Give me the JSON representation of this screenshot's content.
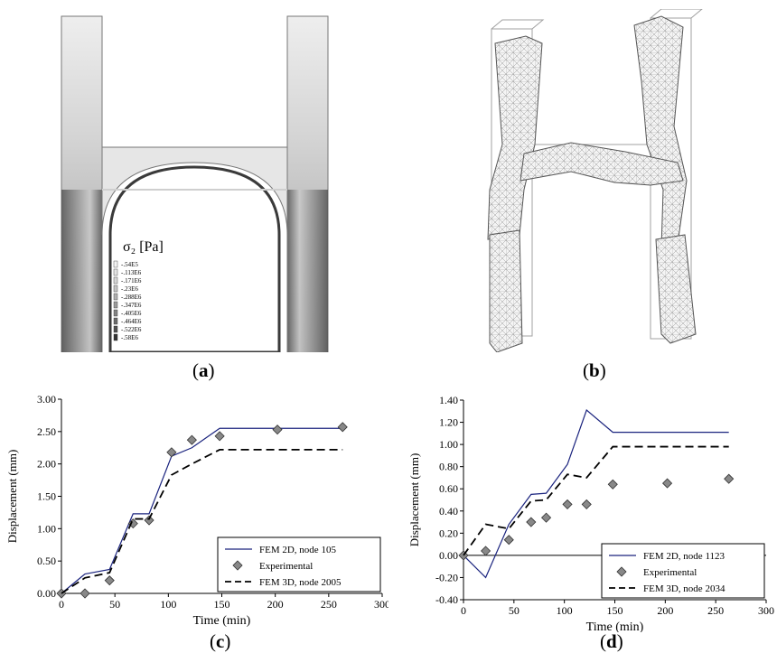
{
  "panels": {
    "a": {
      "caption_letter": "a",
      "sigma_label": "σ₂ [Pa]",
      "legend_values": [
        ".54E5",
        ".113E6",
        ".171E6",
        ".23E6",
        ".288E6",
        ".347E6",
        ".405E6",
        ".464E6",
        ".522E6",
        ".58E6"
      ],
      "legend_prefixes": [
        "-",
        "-",
        "-",
        "-",
        "-",
        "-",
        "-",
        "-",
        "-",
        "-"
      ],
      "legend_colors": [
        "#f2f2f2",
        "#e4e4e4",
        "#d6d6d6",
        "#c4c4c4",
        "#b0b0b0",
        "#9a9a9a",
        "#838383",
        "#6a6a6a",
        "#4f4f4f",
        "#333333"
      ]
    },
    "b": {
      "caption_letter": "b"
    },
    "c": {
      "caption_letter": "c"
    },
    "d": {
      "caption_letter": "d"
    }
  },
  "chart_data": [
    {
      "panel": "c",
      "type": "line",
      "xlabel": "Time (min)",
      "ylabel": "Displacement (mm)",
      "xlim": [
        0,
        300
      ],
      "ylim": [
        0,
        3
      ],
      "xticks": [
        0,
        50,
        100,
        150,
        200,
        250,
        300
      ],
      "yticks": [
        0.0,
        0.5,
        1.0,
        1.5,
        2.0,
        2.5,
        3.0
      ],
      "ytick_labels": [
        "0.00",
        "0.50",
        "1.00",
        "1.50",
        "2.00",
        "2.50",
        "3.00"
      ],
      "legend_position": "bottom-right",
      "series": [
        {
          "name": "FEM 2D, node 105",
          "style": "solid",
          "color": "#1a237e",
          "x": [
            0,
            22,
            45,
            67,
            82,
            103,
            122,
            148,
            263
          ],
          "y": [
            0,
            0.3,
            0.37,
            1.23,
            1.23,
            2.12,
            2.25,
            2.55,
            2.55
          ]
        },
        {
          "name": "Experimental",
          "style": "marker",
          "color": "#888888",
          "x": [
            0,
            22,
            45,
            67,
            82,
            103,
            122,
            148,
            202,
            263
          ],
          "y": [
            0,
            0,
            0.2,
            1.08,
            1.13,
            2.18,
            2.37,
            2.43,
            2.53,
            2.57
          ]
        },
        {
          "name": "FEM 3D, node 2005",
          "style": "dashed",
          "color": "#000000",
          "x": [
            0,
            22,
            45,
            67,
            82,
            103,
            122,
            148,
            263
          ],
          "y": [
            0,
            0.24,
            0.32,
            1.15,
            1.15,
            1.83,
            2.0,
            2.22,
            2.22
          ]
        }
      ]
    },
    {
      "panel": "d",
      "type": "line",
      "xlabel": "Time (min)",
      "ylabel": "Displacement (mm)",
      "xlim": [
        0,
        300
      ],
      "ylim": [
        -0.4,
        1.4
      ],
      "xticks": [
        0,
        50,
        100,
        150,
        200,
        250,
        300
      ],
      "yticks": [
        -0.4,
        -0.2,
        0.0,
        0.2,
        0.4,
        0.6,
        0.8,
        1.0,
        1.2,
        1.4
      ],
      "ytick_labels": [
        "-0.40",
        "-0.20",
        "0.00",
        "0.20",
        "0.40",
        "0.60",
        "0.80",
        "1.00",
        "1.20",
        "1.40"
      ],
      "legend_position": "bottom-right",
      "series": [
        {
          "name": "FEM 2D, node 1123",
          "style": "solid",
          "color": "#1a237e",
          "x": [
            0,
            22,
            45,
            67,
            82,
            103,
            122,
            148,
            263
          ],
          "y": [
            0,
            -0.2,
            0.28,
            0.55,
            0.56,
            0.82,
            1.31,
            1.11,
            1.11
          ]
        },
        {
          "name": "Experimental",
          "style": "marker",
          "color": "#888888",
          "x": [
            0,
            22,
            45,
            67,
            82,
            103,
            122,
            148,
            202,
            263
          ],
          "y": [
            0,
            0.04,
            0.14,
            0.3,
            0.34,
            0.46,
            0.46,
            0.64,
            0.65,
            0.69
          ]
        },
        {
          "name": "FEM 3D, node 2034",
          "style": "dashed",
          "color": "#000000",
          "x": [
            0,
            22,
            45,
            67,
            82,
            103,
            122,
            148,
            263
          ],
          "y": [
            0,
            0.28,
            0.24,
            0.49,
            0.5,
            0.73,
            0.7,
            0.98,
            0.98
          ]
        }
      ]
    }
  ]
}
